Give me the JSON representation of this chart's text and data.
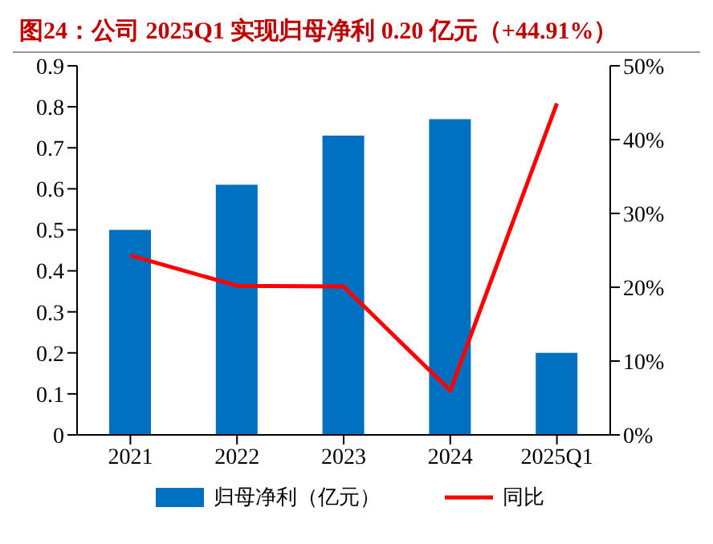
{
  "chart_data": {
    "type": "bar",
    "title": "图24：公司 2025Q1 实现归母净利 0.20 亿元（+44.91%）",
    "categories": [
      "2021",
      "2022",
      "2023",
      "2024",
      "2025Q1"
    ],
    "series": [
      {
        "name": "归母净利（亿元）",
        "color": "#0070c0",
        "values": [
          0.5,
          0.61,
          0.73,
          0.77,
          0.2
        ]
      },
      {
        "name": "同比",
        "type": "line",
        "axis": "y2",
        "color": "#ff0000",
        "values": [
          24.3,
          20.2,
          20.1,
          6.0,
          44.91
        ]
      }
    ],
    "ylim": [
      0,
      0.9
    ],
    "yticks": [
      0,
      0.1,
      0.2,
      0.3,
      0.4,
      0.5,
      0.6,
      0.7,
      0.8,
      0.9
    ],
    "y2lim": [
      0,
      50
    ],
    "y2ticks": [
      {
        "value": 0,
        "label": "0%"
      },
      {
        "value": 10,
        "label": "10%"
      },
      {
        "value": 20,
        "label": "20%"
      },
      {
        "value": 30,
        "label": "30%"
      },
      {
        "value": 40,
        "label": "40%"
      },
      {
        "value": 50,
        "label": "50%"
      }
    ],
    "legend": "bottom",
    "grid": false,
    "marker": "none"
  }
}
